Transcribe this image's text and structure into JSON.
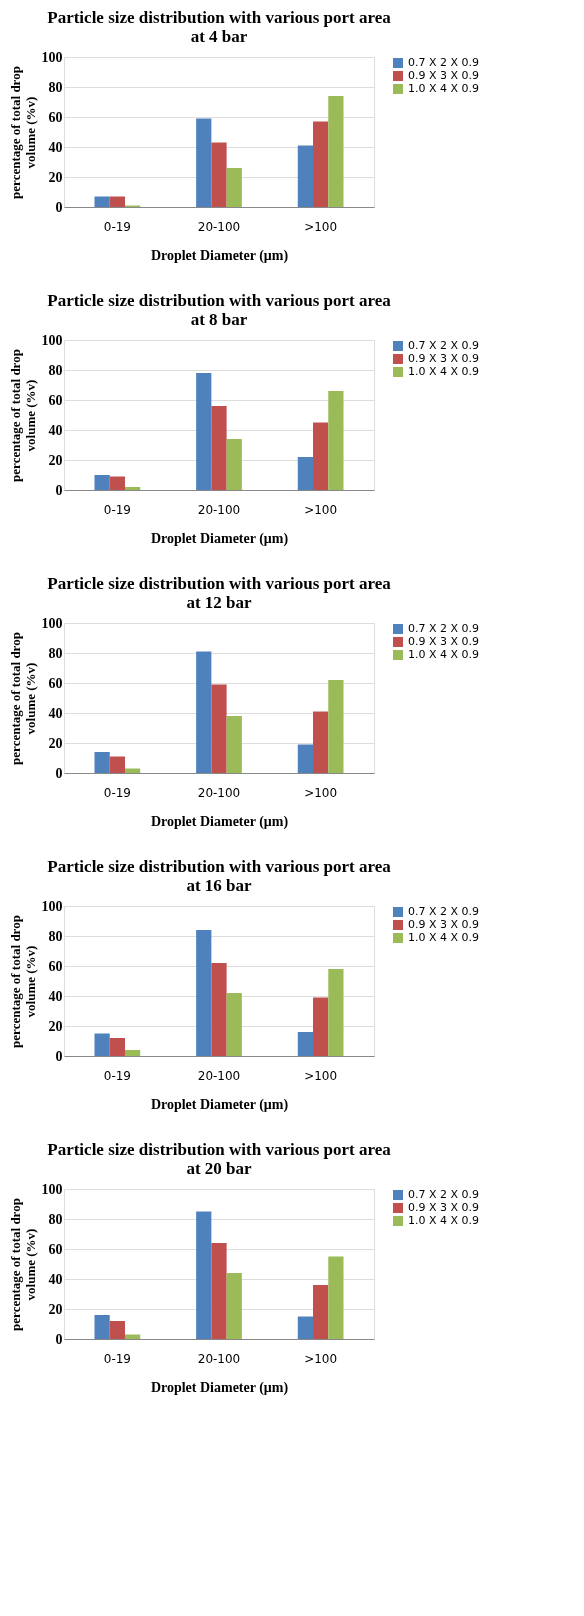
{
  "chart_data": [
    {
      "type": "bar",
      "title": "Particle size distribution with various port area at 4 bar",
      "xlabel": "Droplet Diameter (μm)",
      "ylabel": "percentage of total drop volume (%v)",
      "categories": [
        "0-19",
        "20-100",
        ">100"
      ],
      "ylim": [
        0,
        100
      ],
      "yticks": [
        0,
        20,
        40,
        60,
        80,
        100
      ],
      "grid": "y",
      "legend": "right",
      "series": [
        {
          "name": "0.7 X 2 X 0.9",
          "color": "#4f81bd",
          "values": [
            7,
            59,
            41
          ]
        },
        {
          "name": "0.9 X 3 X 0.9",
          "color": "#c0504d",
          "values": [
            7,
            43,
            57
          ]
        },
        {
          "name": "1.0 X 4 X 0.9",
          "color": "#9bbb59",
          "values": [
            1,
            26,
            74
          ]
        }
      ]
    },
    {
      "type": "bar",
      "title": "Particle size distribution with various port area at 8 bar",
      "xlabel": "Droplet Diameter (μm)",
      "ylabel": "percentage of total drop volume (%v)",
      "categories": [
        "0-19",
        "20-100",
        ">100"
      ],
      "ylim": [
        0,
        100
      ],
      "yticks": [
        0,
        20,
        40,
        60,
        80,
        100
      ],
      "grid": "y",
      "legend": "right",
      "series": [
        {
          "name": "0.7 X 2 X 0.9",
          "color": "#4f81bd",
          "values": [
            10,
            78,
            22
          ]
        },
        {
          "name": "0.9 X 3 X 0.9",
          "color": "#c0504d",
          "values": [
            9,
            56,
            45
          ]
        },
        {
          "name": "1.0 X 4 X 0.9",
          "color": "#9bbb59",
          "values": [
            2,
            34,
            66
          ]
        }
      ]
    },
    {
      "type": "bar",
      "title": "Particle size distribution with various port area at 12 bar",
      "xlabel": "Droplet Diameter (μm)",
      "ylabel": "percentage of total drop volume (%v)",
      "categories": [
        "0-19",
        "20-100",
        ">100"
      ],
      "ylim": [
        0,
        100
      ],
      "yticks": [
        0,
        20,
        40,
        60,
        80,
        100
      ],
      "grid": "y",
      "legend": "right",
      "series": [
        {
          "name": "0.7 X 2 X 0.9",
          "color": "#4f81bd",
          "values": [
            14,
            81,
            19
          ]
        },
        {
          "name": "0.9 X 3 X 0.9",
          "color": "#c0504d",
          "values": [
            11,
            59,
            41
          ]
        },
        {
          "name": "1.0 X 4 X 0.9",
          "color": "#9bbb59",
          "values": [
            3,
            38,
            62
          ]
        }
      ]
    },
    {
      "type": "bar",
      "title": "Particle size distribution with various port area at 16 bar",
      "xlabel": "Droplet Diameter (μm)",
      "ylabel": "percentage of total drop volume (%v)",
      "categories": [
        "0-19",
        "20-100",
        ">100"
      ],
      "ylim": [
        0,
        100
      ],
      "yticks": [
        0,
        20,
        40,
        60,
        80,
        100
      ],
      "grid": "y",
      "legend": "right",
      "series": [
        {
          "name": "0.7 X 2 X 0.9",
          "color": "#4f81bd",
          "values": [
            15,
            84,
            16
          ]
        },
        {
          "name": "0.9 X 3 X 0.9",
          "color": "#c0504d",
          "values": [
            12,
            62,
            39
          ]
        },
        {
          "name": "1.0 X 4 X 0.9",
          "color": "#9bbb59",
          "values": [
            4,
            42,
            58
          ]
        }
      ]
    },
    {
      "type": "bar",
      "title": "Particle size distribution with various port area at 20 bar",
      "xlabel": "Droplet Diameter (μm)",
      "ylabel": "percentage of total drop volume (%v)",
      "categories": [
        "0-19",
        "20-100",
        ">100"
      ],
      "ylim": [
        0,
        100
      ],
      "yticks": [
        0,
        20,
        40,
        60,
        80,
        100
      ],
      "grid": "y",
      "legend": "right",
      "series": [
        {
          "name": "0.7 X 2 X 0.9",
          "color": "#4f81bd",
          "values": [
            16,
            85,
            15
          ]
        },
        {
          "name": "0.9 X 3 X 0.9",
          "color": "#c0504d",
          "values": [
            12,
            64,
            36
          ]
        },
        {
          "name": "1.0 X 4 X 0.9",
          "color": "#9bbb59",
          "values": [
            3,
            44,
            55
          ]
        }
      ]
    }
  ]
}
